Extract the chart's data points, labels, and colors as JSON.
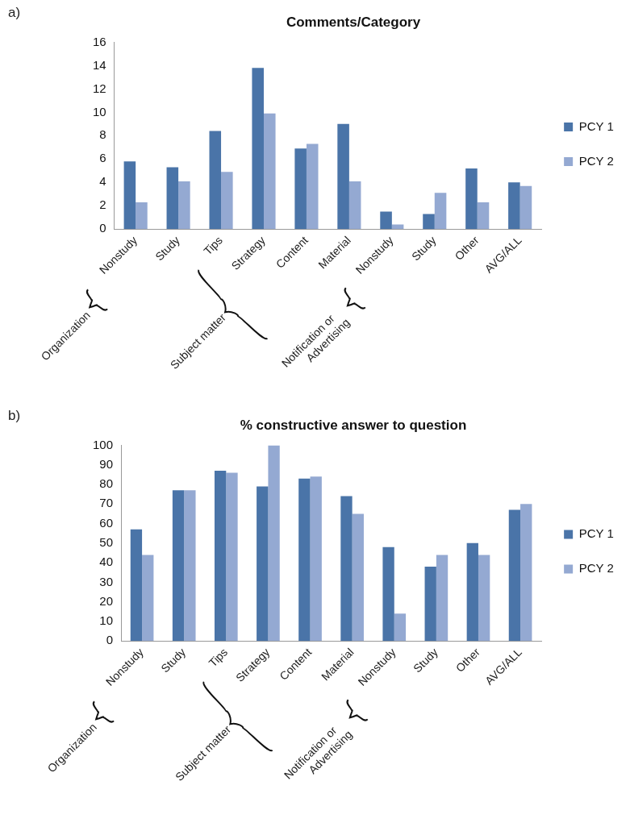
{
  "chart_data": [
    {
      "type": "bar",
      "title": "Comments/Category",
      "categories": [
        "Nonstudy",
        "Study",
        "Tips",
        "Strategy",
        "Content",
        "Material",
        "Nonstudy",
        "Study",
        "Other",
        "AVG/ALL"
      ],
      "series": [
        {
          "name": "PCY 1",
          "color": "#4a74a8",
          "values": [
            5.8,
            5.3,
            8.4,
            13.8,
            6.9,
            9.0,
            1.5,
            1.3,
            5.2,
            4.0
          ]
        },
        {
          "name": "PCY 2",
          "color": "#94a9d2",
          "values": [
            2.3,
            4.1,
            4.9,
            9.9,
            7.3,
            4.1,
            0.4,
            3.1,
            2.3,
            3.7
          ]
        }
      ],
      "ylim": [
        0,
        16
      ],
      "yticks": [
        0,
        2,
        4,
        6,
        8,
        10,
        12,
        14,
        16
      ],
      "grid": false,
      "legend": "right",
      "annotations": [
        "a)",
        "Organization",
        "Subject matter",
        "Notification or Advertising"
      ]
    },
    {
      "type": "bar",
      "title": "% constructive answer to question",
      "categories": [
        "Nonstudy",
        "Study",
        "Tips",
        "Strategy",
        "Content",
        "Material",
        "Nonstudy",
        "Study",
        "Other",
        "AVG/ALL"
      ],
      "series": [
        {
          "name": "PCY 1",
          "color": "#4a74a8",
          "values": [
            57,
            77,
            87,
            79,
            83,
            74,
            48,
            38,
            50,
            67
          ]
        },
        {
          "name": "PCY 2",
          "color": "#94a9d2",
          "values": [
            44,
            77,
            86,
            100,
            84,
            65,
            14,
            44,
            44,
            70
          ]
        }
      ],
      "ylim": [
        0,
        100
      ],
      "yticks": [
        0,
        10,
        20,
        30,
        40,
        50,
        60,
        70,
        80,
        90,
        100
      ],
      "grid": false,
      "legend": "right",
      "annotations": [
        "b)",
        "Organization",
        "Subject matter",
        "Notification or Advertising"
      ]
    }
  ]
}
